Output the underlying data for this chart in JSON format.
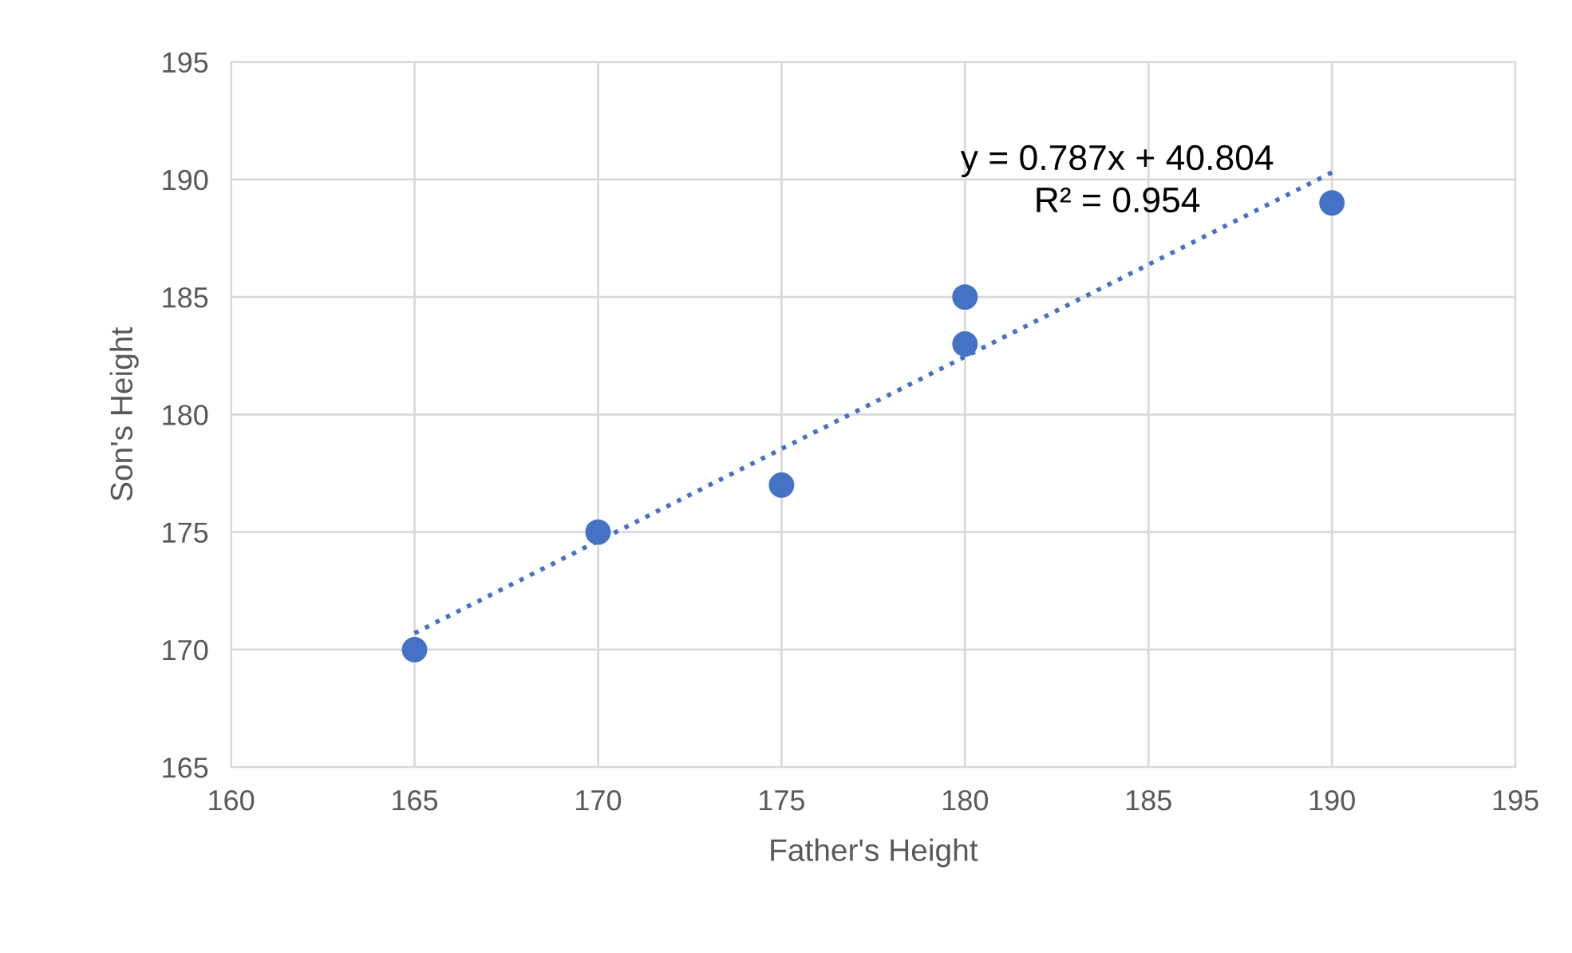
{
  "chart_data": {
    "type": "scatter",
    "xlabel": "Father's Height",
    "ylabel": "Son's Height",
    "xlim": [
      160,
      195
    ],
    "xticks": [
      160,
      165,
      170,
      175,
      180,
      185,
      190,
      195
    ],
    "ylim": [
      165,
      195
    ],
    "yticks": [
      165,
      170,
      175,
      180,
      185,
      190,
      195
    ],
    "grid": true,
    "series": [
      {
        "marker": "circle",
        "color": "#4472c4",
        "x": [
          165,
          170,
          175,
          180,
          180,
          190
        ],
        "values": [
          170,
          175,
          177,
          185,
          183,
          189
        ]
      },
      {
        "type": "line",
        "color": "#4472c4",
        "line_style": "dotted",
        "marker": "none",
        "x": [
          165,
          190
        ],
        "values": [
          170.7,
          190.3
        ]
      }
    ],
    "annotations": [
      "y = 0.787x + 40.804",
      "R² = 0.954"
    ]
  }
}
